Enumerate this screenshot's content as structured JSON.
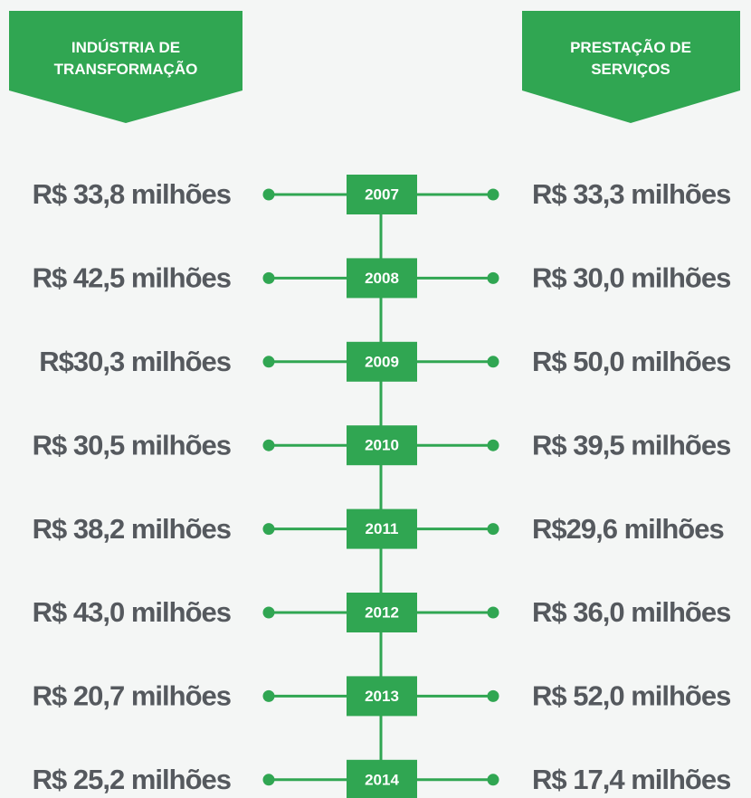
{
  "headers": {
    "left": [
      "INDÚSTRIA DE",
      "TRANSFORMAÇÃO"
    ],
    "right": [
      "PRESTAÇÃO DE",
      "SERVIÇOS"
    ]
  },
  "rows": [
    {
      "year": "2007",
      "left": "R$ 33,8 milhões",
      "right": "R$ 33,3 milhões"
    },
    {
      "year": "2008",
      "left": "R$ 42,5 milhões",
      "right": "R$ 30,0 milhões"
    },
    {
      "year": "2009",
      "left": "R$30,3 milhões",
      "right": "R$ 50,0 milhões"
    },
    {
      "year": "2010",
      "left": "R$ 30,5 milhões",
      "right": "R$ 39,5 milhões"
    },
    {
      "year": "2011",
      "left": "R$ 38,2 milhões",
      "right": "R$29,6 milhões"
    },
    {
      "year": "2012",
      "left": "R$ 43,0 milhões",
      "right": "R$ 36,0 milhões"
    },
    {
      "year": "2013",
      "left": "R$ 20,7 milhões",
      "right": "R$ 52,0 milhões"
    },
    {
      "year": "2014",
      "left": "R$ 25,2 milhões",
      "right": "R$ 17,4 milhões"
    }
  ]
}
